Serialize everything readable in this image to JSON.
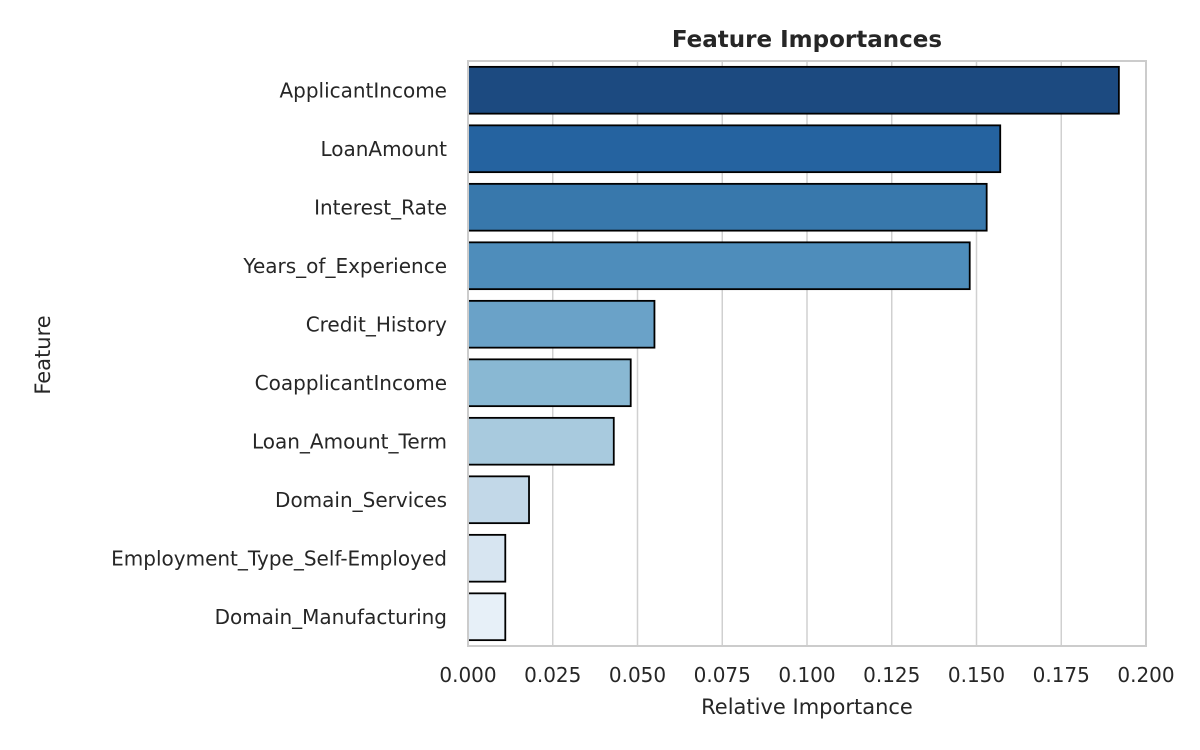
{
  "chart_data": {
    "type": "bar",
    "orientation": "horizontal",
    "title": "Feature Importances",
    "xlabel": "Relative Importance",
    "ylabel": "Feature",
    "categories": [
      "ApplicantIncome",
      "LoanAmount",
      "Interest_Rate",
      "Years_of_Experience",
      "Credit_History",
      "CoapplicantIncome",
      "Loan_Amount_Term",
      "Domain_Services",
      "Employment_Type_Self-Employed",
      "Domain_Manufacturing"
    ],
    "values": [
      0.192,
      0.157,
      0.153,
      0.148,
      0.055,
      0.048,
      0.043,
      0.018,
      0.011,
      0.011
    ],
    "colors": [
      "#1c4a80",
      "#2563a0",
      "#3878ac",
      "#4e8dbb",
      "#6aa2c8",
      "#89b8d3",
      "#a8cade",
      "#c2d8e8",
      "#d7e5f1",
      "#e7f0f8"
    ],
    "xlim": [
      0,
      0.2
    ],
    "xticks": [
      "0.000",
      "0.025",
      "0.050",
      "0.075",
      "0.100",
      "0.125",
      "0.150",
      "0.175",
      "0.200"
    ],
    "grid": "vertical",
    "legend": "none"
  }
}
